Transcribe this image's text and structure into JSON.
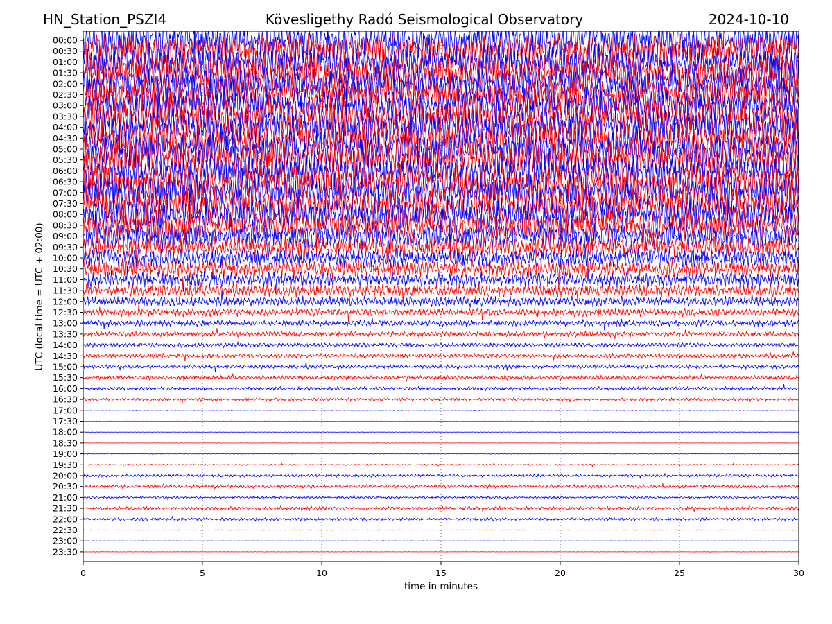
{
  "header": {
    "station": "HN_Station_PSZI4",
    "observatory": "Kövesligethy Radó Seismological Observatory",
    "date": "2024-10-10"
  },
  "chart_data": {
    "type": "line",
    "title": "Kövesligethy Radó Seismological Observatory",
    "xlabel": "time in minutes",
    "ylabel": "UTC (local time = UTC + 02:00)",
    "xlim": [
      0,
      30
    ],
    "xticks": [
      0,
      5,
      10,
      15,
      20,
      25,
      30
    ],
    "grid": "vertical dotted lines at x ticks",
    "trace_colors": [
      "#0000ff",
      "#ff0000"
    ],
    "rows": [
      {
        "label": "00:00",
        "amplitude": 3.0
      },
      {
        "label": "00:30",
        "amplitude": 3.0
      },
      {
        "label": "01:00",
        "amplitude": 3.0
      },
      {
        "label": "01:30",
        "amplitude": 3.0
      },
      {
        "label": "02:00",
        "amplitude": 3.0
      },
      {
        "label": "02:30",
        "amplitude": 3.0
      },
      {
        "label": "03:00",
        "amplitude": 3.0
      },
      {
        "label": "03:30",
        "amplitude": 3.0
      },
      {
        "label": "04:00",
        "amplitude": 3.0
      },
      {
        "label": "04:30",
        "amplitude": 3.0
      },
      {
        "label": "05:00",
        "amplitude": 3.0
      },
      {
        "label": "05:30",
        "amplitude": 3.0
      },
      {
        "label": "06:00",
        "amplitude": 3.0
      },
      {
        "label": "06:30",
        "amplitude": 3.0
      },
      {
        "label": "07:00",
        "amplitude": 3.0
      },
      {
        "label": "07:30",
        "amplitude": 3.0
      },
      {
        "label": "08:00",
        "amplitude": 2.8
      },
      {
        "label": "08:30",
        "amplitude": 2.5
      },
      {
        "label": "09:00",
        "amplitude": 2.2
      },
      {
        "label": "09:30",
        "amplitude": 1.9
      },
      {
        "label": "10:00",
        "amplitude": 1.7
      },
      {
        "label": "10:30",
        "amplitude": 1.5
      },
      {
        "label": "11:00",
        "amplitude": 1.3
      },
      {
        "label": "11:30",
        "amplitude": 1.1
      },
      {
        "label": "12:00",
        "amplitude": 0.9
      },
      {
        "label": "12:30",
        "amplitude": 0.7
      },
      {
        "label": "13:00",
        "amplitude": 0.55
      },
      {
        "label": "13:30",
        "amplitude": 0.45
      },
      {
        "label": "14:00",
        "amplitude": 0.4
      },
      {
        "label": "14:30",
        "amplitude": 0.4
      },
      {
        "label": "15:00",
        "amplitude": 0.35
      },
      {
        "label": "15:30",
        "amplitude": 0.35
      },
      {
        "label": "16:00",
        "amplitude": 0.3
      },
      {
        "label": "16:30",
        "amplitude": 0.25
      },
      {
        "label": "17:00",
        "amplitude": 0.06
      },
      {
        "label": "17:30",
        "amplitude": 0.05
      },
      {
        "label": "18:00",
        "amplitude": 0.04
      },
      {
        "label": "18:30",
        "amplitude": 0.03
      },
      {
        "label": "19:00",
        "amplitude": 0.06
      },
      {
        "label": "19:30",
        "amplitude": 0.12
      },
      {
        "label": "20:00",
        "amplitude": 0.25
      },
      {
        "label": "20:30",
        "amplitude": 0.3
      },
      {
        "label": "21:00",
        "amplitude": 0.2
      },
      {
        "label": "21:30",
        "amplitude": 0.3
      },
      {
        "label": "22:00",
        "amplitude": 0.25
      },
      {
        "label": "22:30",
        "amplitude": 0.05
      },
      {
        "label": "23:00",
        "amplitude": 0.04
      },
      {
        "label": "23:30",
        "amplitude": 0.03
      }
    ]
  }
}
